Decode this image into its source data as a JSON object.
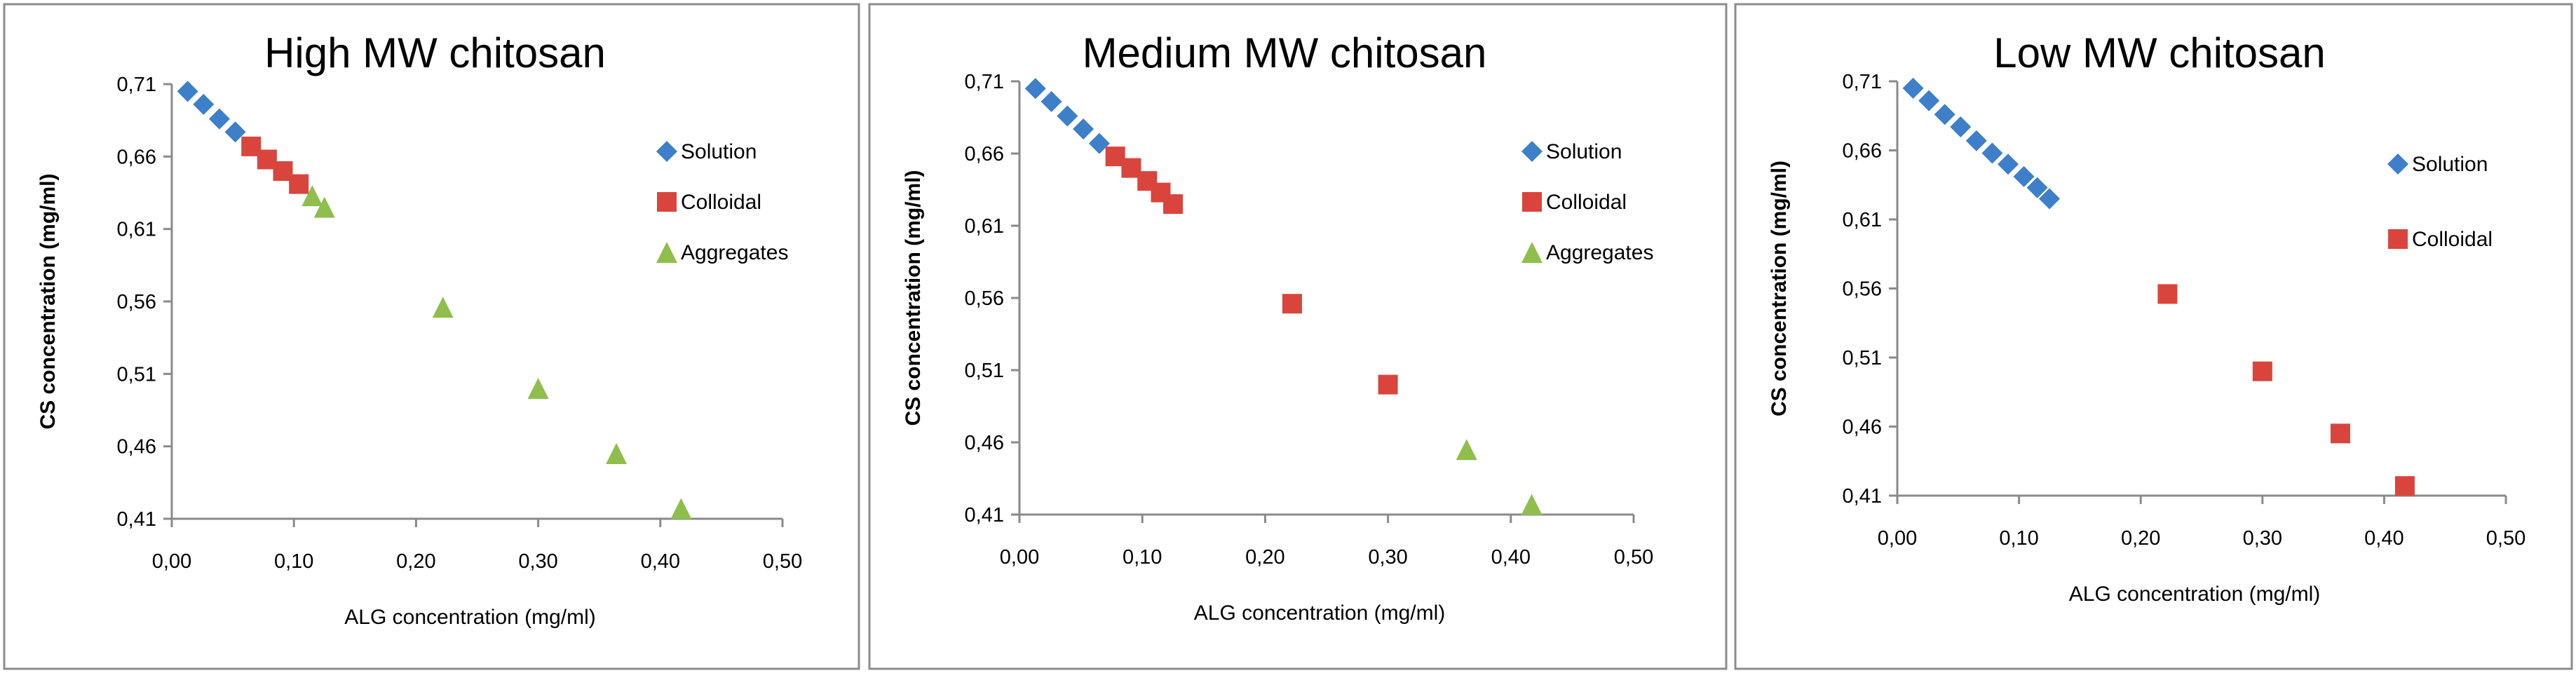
{
  "chart_data": [
    {
      "type": "scatter",
      "title": "High MW chitosan",
      "xlabel": "ALG concentration (mg/ml)",
      "ylabel": "CS concentration (mg/ml)",
      "xlim": [
        0,
        0.5
      ],
      "ylim": [
        0.41,
        0.71
      ],
      "xticks": [
        "0,00",
        "0,10",
        "0,20",
        "0,30",
        "0,40",
        "0,50"
      ],
      "yticks": [
        "0,41",
        "0,46",
        "0,51",
        "0,56",
        "0,61",
        "0,66",
        "0,71"
      ],
      "legend_position": "right",
      "series": [
        {
          "name": "Solution",
          "marker": "diamond",
          "color": "#3d7fc9",
          "points": [
            [
              0.013,
              0.705
            ],
            [
              0.026,
              0.696
            ],
            [
              0.039,
              0.686
            ],
            [
              0.052,
              0.677
            ]
          ]
        },
        {
          "name": "Colloidal",
          "marker": "square",
          "color": "#d9453c",
          "points": [
            [
              0.065,
              0.667
            ],
            [
              0.078,
              0.658
            ],
            [
              0.091,
              0.65
            ],
            [
              0.104,
              0.641
            ]
          ]
        },
        {
          "name": "Aggregates",
          "marker": "triangle",
          "color": "#8fbe4d",
          "points": [
            [
              0.115,
              0.633
            ],
            [
              0.125,
              0.625
            ],
            [
              0.222,
              0.556
            ],
            [
              0.3,
              0.5
            ],
            [
              0.364,
              0.455
            ],
            [
              0.417,
              0.417
            ]
          ]
        }
      ]
    },
    {
      "type": "scatter",
      "title": "Medium MW chitosan",
      "xlabel": "ALG concentration (mg/ml)",
      "ylabel": "CS concentration (mg/ml)",
      "xlim": [
        0,
        0.5
      ],
      "ylim": [
        0.41,
        0.71
      ],
      "xticks": [
        "0,00",
        "0,10",
        "0,20",
        "0,30",
        "0,40",
        "0,50"
      ],
      "yticks": [
        "0,41",
        "0,46",
        "0,51",
        "0,56",
        "0,61",
        "0,66",
        "0,71"
      ],
      "legend_position": "right",
      "series": [
        {
          "name": "Solution",
          "marker": "diamond",
          "color": "#3d7fc9",
          "points": [
            [
              0.013,
              0.705
            ],
            [
              0.026,
              0.696
            ],
            [
              0.039,
              0.686
            ],
            [
              0.052,
              0.677
            ],
            [
              0.065,
              0.667
            ]
          ]
        },
        {
          "name": "Colloidal",
          "marker": "square",
          "color": "#d9453c",
          "points": [
            [
              0.078,
              0.658
            ],
            [
              0.091,
              0.65
            ],
            [
              0.104,
              0.641
            ],
            [
              0.115,
              0.633
            ],
            [
              0.125,
              0.625
            ],
            [
              0.222,
              0.556
            ],
            [
              0.3,
              0.5
            ]
          ]
        },
        {
          "name": "Aggregates",
          "marker": "triangle",
          "color": "#8fbe4d",
          "points": [
            [
              0.364,
              0.455
            ],
            [
              0.417,
              0.417
            ]
          ]
        }
      ]
    },
    {
      "type": "scatter",
      "title": "Low MW chitosan",
      "xlabel": "ALG concentration (mg/ml)",
      "ylabel": "CS concentration (mg/ml)",
      "xlim": [
        0,
        0.5
      ],
      "ylim": [
        0.41,
        0.71
      ],
      "xticks": [
        "0,00",
        "0,10",
        "0,20",
        "0,30",
        "0,40",
        "0,50"
      ],
      "yticks": [
        "0,41",
        "0,46",
        "0,51",
        "0,56",
        "0,61",
        "0,66",
        "0,71"
      ],
      "legend_position": "right",
      "series": [
        {
          "name": "Solution",
          "marker": "diamond",
          "color": "#3d7fc9",
          "points": [
            [
              0.013,
              0.705
            ],
            [
              0.026,
              0.696
            ],
            [
              0.039,
              0.686
            ],
            [
              0.052,
              0.677
            ],
            [
              0.065,
              0.667
            ],
            [
              0.078,
              0.658
            ],
            [
              0.091,
              0.65
            ],
            [
              0.104,
              0.641
            ],
            [
              0.115,
              0.633
            ],
            [
              0.125,
              0.625
            ]
          ]
        },
        {
          "name": "Colloidal",
          "marker": "square",
          "color": "#d9453c",
          "points": [
            [
              0.222,
              0.556
            ],
            [
              0.3,
              0.5
            ],
            [
              0.364,
              0.455
            ],
            [
              0.417,
              0.417
            ]
          ]
        }
      ]
    }
  ]
}
